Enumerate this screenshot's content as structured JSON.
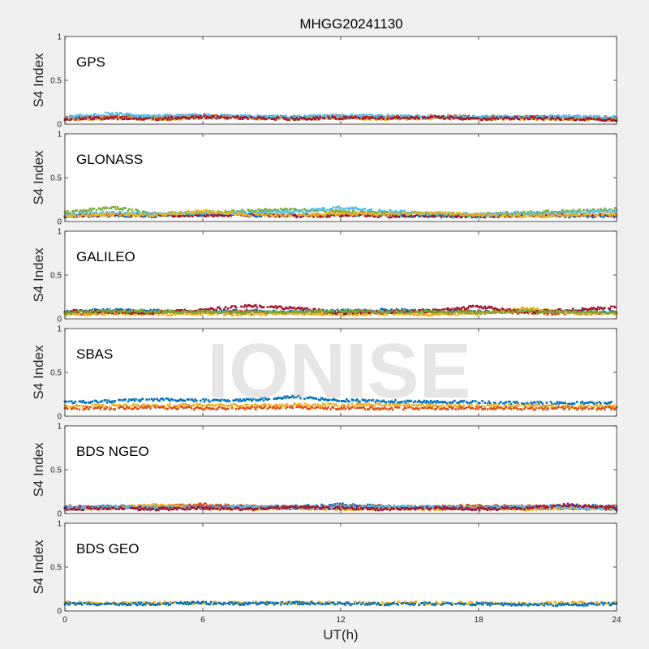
{
  "title": "MHGG20241130",
  "watermark": "IONISE",
  "chart_data": {
    "type": "scatter",
    "title": "MHGG20241130",
    "xlabel": "UT(h)",
    "ylabel": "S4 Index",
    "xlim": [
      0,
      24
    ],
    "ylim": [
      0,
      1
    ],
    "xticks": [
      0,
      6,
      12,
      18,
      24
    ],
    "xtick_labels": [
      "0",
      "6",
      "12",
      "18",
      "24"
    ],
    "yticks": [
      0,
      0.5,
      1
    ],
    "ytick_labels": [
      "0",
      "0.5",
      "1"
    ],
    "colors": [
      "#0072BD",
      "#D95319",
      "#EDB120",
      "#7E2F8E",
      "#77AC30",
      "#4DBEEE",
      "#A2142F"
    ],
    "panels": [
      {
        "label": "GPS",
        "series": [
          {
            "color": "#0072BD",
            "x": [
              0,
              2,
              4,
              6,
              8,
              10,
              12,
              14,
              16,
              18,
              20,
              22,
              24
            ],
            "y": [
              0.06,
              0.08,
              0.07,
              0.09,
              0.08,
              0.07,
              0.08,
              0.07,
              0.08,
              0.07,
              0.08,
              0.07,
              0.06
            ]
          },
          {
            "color": "#D95319",
            "x": [
              0,
              2,
              4,
              6,
              8,
              10,
              12,
              14,
              16,
              18,
              20,
              22,
              24
            ],
            "y": [
              0.07,
              0.09,
              0.08,
              0.1,
              0.08,
              0.08,
              0.09,
              0.08,
              0.09,
              0.08,
              0.08,
              0.08,
              0.07
            ]
          },
          {
            "color": "#EDB120",
            "x": [
              0,
              2,
              4,
              6,
              8,
              10,
              12,
              14,
              16,
              18,
              20,
              22,
              24
            ],
            "y": [
              0.05,
              0.07,
              0.06,
              0.07,
              0.07,
              0.06,
              0.07,
              0.06,
              0.07,
              0.06,
              0.06,
              0.06,
              0.05
            ]
          },
          {
            "color": "#4DBEEE",
            "x": [
              0,
              2,
              4,
              6,
              8,
              10,
              12,
              14,
              16,
              18,
              20,
              22,
              24
            ],
            "y": [
              0.08,
              0.12,
              0.09,
              0.1,
              0.09,
              0.08,
              0.1,
              0.09,
              0.08,
              0.09,
              0.08,
              0.09,
              0.08
            ]
          },
          {
            "color": "#A2142F",
            "x": [
              0,
              2,
              4,
              6,
              8,
              10,
              12,
              14,
              16,
              18,
              20,
              22,
              24
            ],
            "y": [
              0.06,
              0.07,
              0.06,
              0.08,
              0.07,
              0.06,
              0.07,
              0.07,
              0.08,
              0.06,
              0.07,
              0.06,
              0.05
            ]
          }
        ]
      },
      {
        "label": "GLONASS",
        "series": [
          {
            "color": "#0072BD",
            "x": [
              0,
              2,
              4,
              6,
              8,
              10,
              12,
              14,
              16,
              18,
              20,
              22,
              24
            ],
            "y": [
              0.06,
              0.07,
              0.06,
              0.08,
              0.07,
              0.07,
              0.08,
              0.07,
              0.06,
              0.06,
              0.07,
              0.06,
              0.06
            ]
          },
          {
            "color": "#A2142F",
            "x": [
              0,
              2,
              4,
              6,
              8,
              10,
              12,
              14,
              16,
              18,
              20,
              22,
              24
            ],
            "y": [
              0.07,
              0.08,
              0.07,
              0.07,
              0.08,
              0.06,
              0.07,
              0.06,
              0.07,
              0.06,
              0.07,
              0.08,
              0.07
            ]
          },
          {
            "color": "#77AC30",
            "x": [
              0,
              2,
              4,
              6,
              8,
              10,
              12,
              14,
              16,
              18,
              20,
              22,
              24
            ],
            "y": [
              0.1,
              0.16,
              0.09,
              0.1,
              0.12,
              0.14,
              0.11,
              0.1,
              0.09,
              0.08,
              0.1,
              0.12,
              0.14
            ]
          },
          {
            "color": "#4DBEEE",
            "x": [
              0,
              2,
              4,
              6,
              8,
              10,
              12,
              14,
              16,
              18,
              20,
              22,
              24
            ],
            "y": [
              0.08,
              0.1,
              0.09,
              0.1,
              0.1,
              0.11,
              0.16,
              0.12,
              0.09,
              0.08,
              0.09,
              0.1,
              0.12
            ]
          },
          {
            "color": "#EDB120",
            "x": [
              0,
              2,
              4,
              6,
              8,
              10,
              12,
              14,
              16,
              18,
              20,
              22,
              24
            ],
            "y": [
              0.06,
              0.08,
              0.07,
              0.12,
              0.08,
              0.07,
              0.09,
              0.08,
              0.1,
              0.07,
              0.06,
              0.07,
              0.08
            ]
          }
        ]
      },
      {
        "label": "GALILEO",
        "series": [
          {
            "color": "#0072BD",
            "x": [
              0,
              2,
              4,
              6,
              8,
              10,
              12,
              14,
              16,
              18,
              20,
              22,
              24
            ],
            "y": [
              0.08,
              0.1,
              0.09,
              0.08,
              0.09,
              0.08,
              0.09,
              0.1,
              0.09,
              0.08,
              0.09,
              0.08,
              0.08
            ]
          },
          {
            "color": "#D95319",
            "x": [
              0,
              2,
              4,
              6,
              8,
              10,
              12,
              14,
              16,
              18,
              20,
              22,
              24
            ],
            "y": [
              0.06,
              0.07,
              0.08,
              0.07,
              0.08,
              0.07,
              0.06,
              0.08,
              0.07,
              0.08,
              0.07,
              0.06,
              0.07
            ]
          },
          {
            "color": "#EDB120",
            "x": [
              0,
              2,
              4,
              6,
              8,
              10,
              12,
              14,
              16,
              18,
              20,
              22,
              24
            ],
            "y": [
              0.05,
              0.06,
              0.05,
              0.06,
              0.05,
              0.06,
              0.05,
              0.06,
              0.05,
              0.06,
              0.12,
              0.07,
              0.06
            ]
          },
          {
            "color": "#A2142F",
            "x": [
              0,
              2,
              4,
              6,
              8,
              10,
              12,
              14,
              16,
              18,
              20,
              22,
              24
            ],
            "y": [
              0.09,
              0.08,
              0.07,
              0.1,
              0.15,
              0.12,
              0.07,
              0.08,
              0.09,
              0.14,
              0.08,
              0.1,
              0.13
            ]
          },
          {
            "color": "#77AC30",
            "x": [
              0,
              2,
              4,
              6,
              8,
              10,
              12,
              14,
              16,
              18,
              20,
              22,
              24
            ],
            "y": [
              0.07,
              0.09,
              0.08,
              0.08,
              0.07,
              0.08,
              0.09,
              0.08,
              0.08,
              0.07,
              0.09,
              0.08,
              0.07
            ]
          }
        ]
      },
      {
        "label": "SBAS",
        "series": [
          {
            "color": "#0072BD",
            "x": [
              0,
              2,
              4,
              6,
              8,
              10,
              12,
              14,
              16,
              18,
              20,
              22,
              24
            ],
            "y": [
              0.16,
              0.17,
              0.19,
              0.18,
              0.18,
              0.22,
              0.18,
              0.17,
              0.16,
              0.16,
              0.15,
              0.15,
              0.15
            ]
          },
          {
            "color": "#EDB120",
            "x": [
              0,
              2,
              4,
              6,
              8,
              10,
              12,
              14,
              16,
              18,
              20,
              22,
              24
            ],
            "y": [
              0.11,
              0.12,
              0.12,
              0.13,
              0.12,
              0.13,
              0.13,
              0.13,
              0.12,
              0.12,
              0.12,
              0.11,
              0.11
            ]
          },
          {
            "color": "#D95319",
            "x": [
              0,
              2,
              4,
              6,
              8,
              10,
              12,
              14,
              16,
              18,
              20,
              22,
              24
            ],
            "y": [
              0.09,
              0.09,
              0.1,
              0.09,
              0.09,
              0.1,
              0.09,
              0.09,
              0.09,
              0.09,
              0.09,
              0.09,
              0.09
            ]
          }
        ]
      },
      {
        "label": "BDS NGEO",
        "series": [
          {
            "color": "#0072BD",
            "x": [
              0,
              2,
              4,
              6,
              8,
              10,
              12,
              14,
              16,
              18,
              20,
              22,
              24
            ],
            "y": [
              0.07,
              0.08,
              0.07,
              0.08,
              0.07,
              0.08,
              0.1,
              0.08,
              0.07,
              0.08,
              0.07,
              0.09,
              0.08
            ]
          },
          {
            "color": "#D95319",
            "x": [
              0,
              2,
              4,
              6,
              8,
              10,
              12,
              14,
              16,
              18,
              20,
              22,
              24
            ],
            "y": [
              0.08,
              0.07,
              0.09,
              0.1,
              0.08,
              0.07,
              0.08,
              0.08,
              0.07,
              0.09,
              0.08,
              0.07,
              0.08
            ]
          },
          {
            "color": "#7E2F8E",
            "x": [
              0,
              2,
              4,
              6,
              8,
              10,
              12,
              14,
              16,
              18,
              20,
              22,
              24
            ],
            "y": [
              0.06,
              0.07,
              0.08,
              0.06,
              0.07,
              0.06,
              0.07,
              0.06,
              0.07,
              0.06,
              0.07,
              0.06,
              0.05
            ]
          },
          {
            "color": "#EDB120",
            "x": [
              0,
              2,
              4,
              6,
              8,
              10,
              12,
              14,
              16,
              18,
              20,
              22,
              24
            ],
            "y": [
              0.05,
              0.06,
              0.1,
              0.06,
              0.05,
              0.06,
              0.05,
              0.06,
              0.05,
              0.06,
              0.05,
              0.06,
              0.05
            ]
          },
          {
            "color": "#4DBEEE",
            "x": [
              0,
              2,
              4,
              6,
              8,
              10,
              12,
              14,
              16,
              18,
              20,
              22,
              24
            ],
            "y": [
              0.06,
              0.07,
              0.06,
              0.07,
              0.08,
              0.06,
              0.07,
              0.08,
              0.07,
              0.06,
              0.08,
              0.07,
              0.06
            ]
          },
          {
            "color": "#A2142F",
            "x": [
              0,
              2,
              4,
              6,
              8,
              10,
              12,
              14,
              16,
              18,
              20,
              22,
              24
            ],
            "y": [
              0.05,
              0.06,
              0.05,
              0.06,
              0.05,
              0.07,
              0.06,
              0.05,
              0.06,
              0.05,
              0.06,
              0.1,
              0.06
            ]
          }
        ]
      },
      {
        "label": "BDS GEO",
        "series": [
          {
            "color": "#EDB120",
            "x": [
              0,
              2,
              4,
              6,
              8,
              10,
              12,
              14,
              16,
              18,
              20,
              22,
              24
            ],
            "y": [
              0.09,
              0.09,
              0.09,
              0.09,
              0.09,
              0.09,
              0.09,
              0.09,
              0.09,
              0.09,
              0.08,
              0.09,
              0.09
            ]
          },
          {
            "color": "#0072BD",
            "x": [
              0,
              2,
              4,
              6,
              8,
              10,
              12,
              14,
              16,
              18,
              20,
              22,
              24
            ],
            "y": [
              0.08,
              0.08,
              0.08,
              0.09,
              0.08,
              0.09,
              0.08,
              0.08,
              0.08,
              0.08,
              0.07,
              0.07,
              0.08
            ]
          }
        ]
      }
    ]
  }
}
